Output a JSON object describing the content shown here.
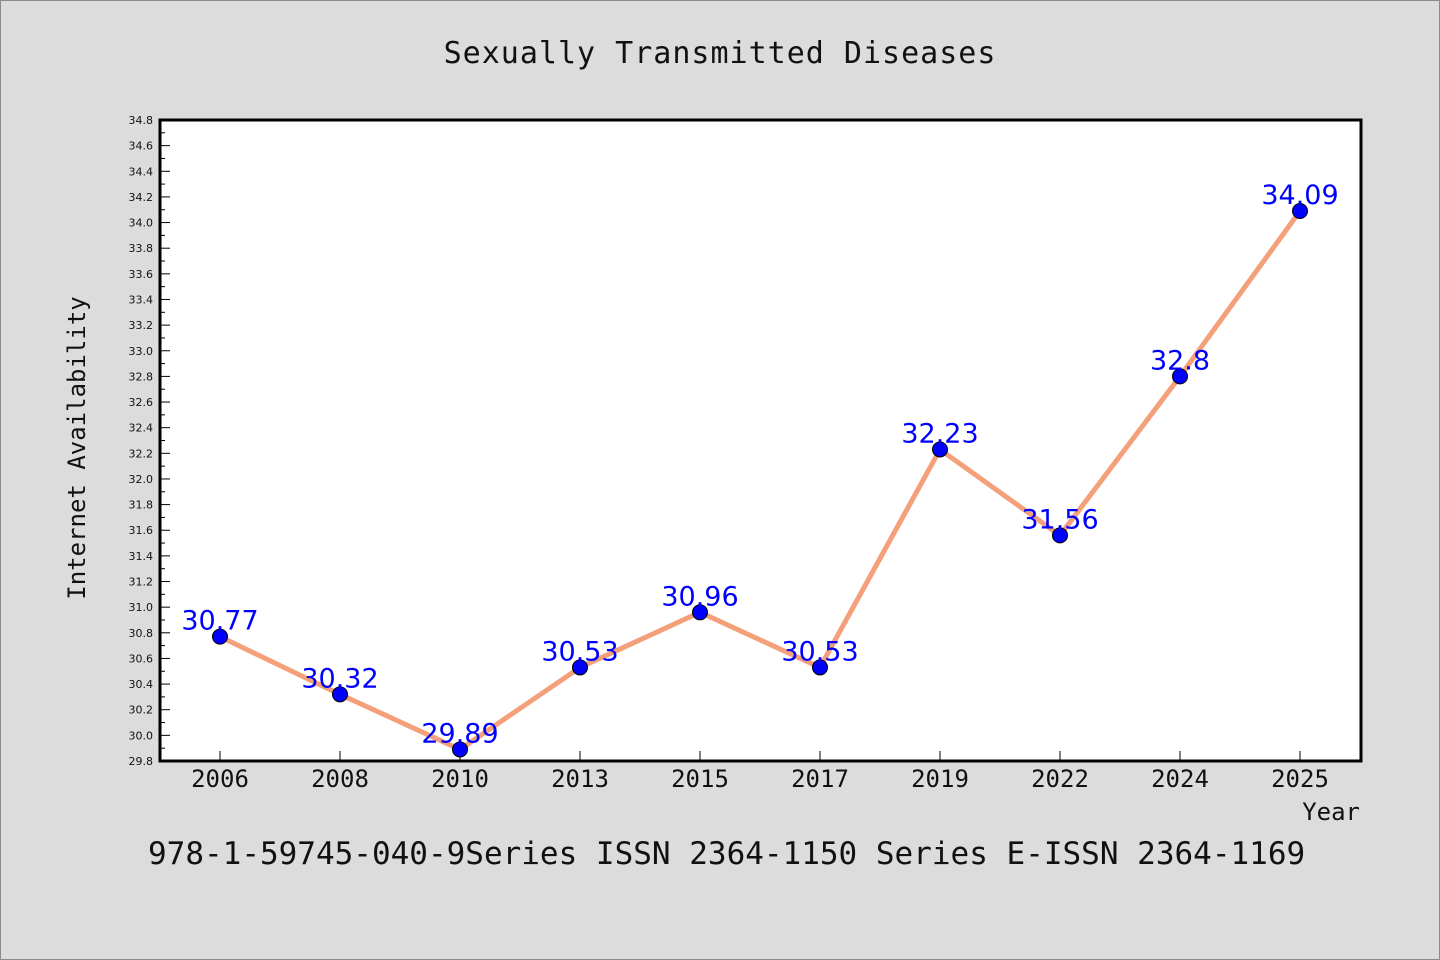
{
  "chart_data": {
    "type": "line",
    "title": "Sexually Transmitted Diseases",
    "xlabel": "Year",
    "ylabel": "Internet Availability",
    "categories": [
      "2006",
      "2008",
      "2010",
      "2013",
      "2015",
      "2017",
      "2019",
      "2022",
      "2024",
      "2025"
    ],
    "series": [
      {
        "values": [
          30.77,
          30.32,
          29.89,
          30.53,
          30.96,
          30.53,
          32.23,
          31.56,
          32.8,
          34.09
        ],
        "data_labels": [
          "30.77",
          "30.32",
          "29.89",
          "30.53",
          "30.96",
          "30.53",
          "32.23",
          "31.56",
          "32.8",
          "34.09"
        ],
        "line_color": "#f4a07a",
        "marker_color": "#0000ff"
      }
    ],
    "ylim": [
      29.8,
      34.8
    ],
    "yticks": [
      "29.8",
      "30.0",
      "30.2",
      "30.4",
      "30.6",
      "30.8",
      "31.0",
      "31.2",
      "31.4",
      "31.6",
      "31.8",
      "32.0",
      "32.2",
      "32.4",
      "32.6",
      "32.8",
      "33.0",
      "33.2",
      "33.4",
      "33.6",
      "33.8",
      "34.0",
      "34.2",
      "34.4",
      "34.6",
      "34.8"
    ],
    "grid": false,
    "legend": "none",
    "background_color": "#dcdcdc",
    "plot_background_color": "#ffffff",
    "label_color": "#0000ff"
  },
  "footer": {
    "text": "978-1-59745-040-9Series ISSN 2364-1150 Series E-ISSN 2364-1169"
  }
}
